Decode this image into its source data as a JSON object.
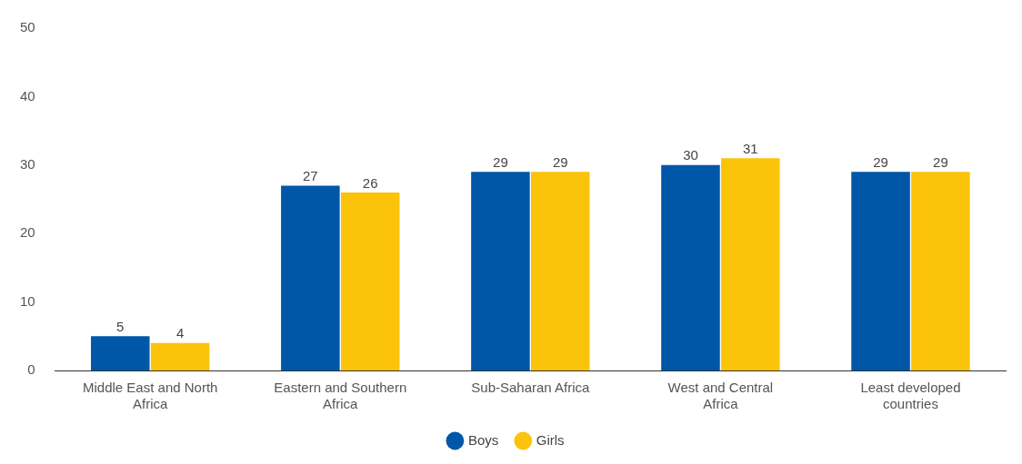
{
  "chart_data": {
    "type": "bar",
    "categories": [
      "Middle East and North Africa",
      "Eastern and Southern Africa",
      "Sub-Saharan Africa",
      "West and Central Africa",
      "Least developed countries"
    ],
    "series": [
      {
        "name": "Boys",
        "color": "#0057a8",
        "values": [
          5,
          27,
          29,
          30,
          29
        ]
      },
      {
        "name": "Girls",
        "color": "#fcc30b",
        "values": [
          4,
          26,
          29,
          31,
          29
        ]
      }
    ],
    "ylim": [
      0,
      50
    ],
    "yticks": [
      0,
      10,
      20,
      30,
      40,
      50
    ],
    "grid": false,
    "legend": "bottom",
    "data_labels": true
  }
}
